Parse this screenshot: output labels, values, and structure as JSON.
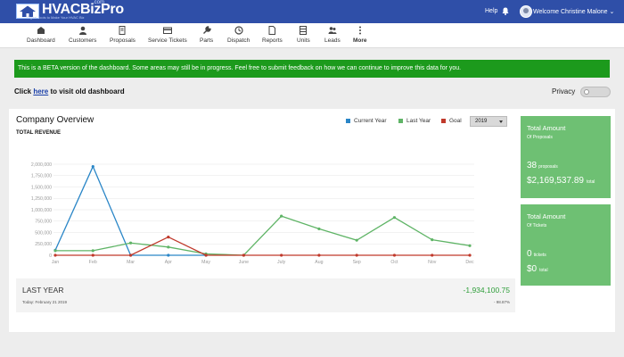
{
  "app": {
    "logo_text": "HVACBizPro",
    "logo_tld": ".com",
    "logo_tagline": "Digital Tools to Make Your HVAC Biz"
  },
  "header": {
    "help_label": "Help",
    "welcome_text": "Welcome Christine Malone"
  },
  "nav": {
    "items": [
      {
        "label": "Dashboard",
        "icon": "dashboard-icon"
      },
      {
        "label": "Customers",
        "icon": "user-icon"
      },
      {
        "label": "Proposals",
        "icon": "proposal-icon"
      },
      {
        "label": "Service Tickets",
        "icon": "credit-card-icon"
      },
      {
        "label": "Parts",
        "icon": "wrench-icon"
      },
      {
        "label": "Dispatch",
        "icon": "dispatch-icon"
      },
      {
        "label": "Reports",
        "icon": "document-icon"
      },
      {
        "label": "Units",
        "icon": "units-icon"
      },
      {
        "label": "Leads",
        "icon": "leads-icon"
      },
      {
        "label": "More",
        "icon": "vertical-dots-icon"
      }
    ]
  },
  "banner": {
    "text": "This is a BETA version of the dashboard. Some areas may still be in progress. Feel free to submit feedback on how we can continue to improve this data for you."
  },
  "old_dashboard": {
    "prefix": "Click ",
    "link": "here",
    "suffix": " to visit old dashboard"
  },
  "privacy": {
    "label": "Privacy",
    "enabled": false
  },
  "overview": {
    "title": "Company Overview",
    "subtitle": "TOTAL REVENUE",
    "legend": [
      {
        "label": "Current Year",
        "color": "#2a86c7"
      },
      {
        "label": "Last Year",
        "color": "#5fb466"
      },
      {
        "label": "Goal",
        "color": "#c0392b"
      }
    ],
    "year_selected": "2019"
  },
  "chart_data": {
    "type": "line",
    "categories": [
      "Jan",
      "Feb",
      "Mar",
      "Apr",
      "May",
      "June",
      "July",
      "Aug",
      "Sep",
      "Oct",
      "Nov",
      "Dec"
    ],
    "yticks": [
      "0",
      "250,000",
      "500,000",
      "750,000",
      "1,000,000",
      "1,250,000",
      "1,500,000",
      "1,750,000",
      "2,000,000"
    ],
    "ylim": [
      0,
      2000000
    ],
    "grid": true,
    "legend_position": "top-right",
    "series": [
      {
        "name": "Current Year",
        "color": "#2a86c7",
        "values": [
          110000,
          1950000,
          0,
          0,
          0,
          null,
          null,
          null,
          null,
          null,
          null,
          null
        ]
      },
      {
        "name": "Last Year",
        "color": "#5fb466",
        "values": [
          100000,
          100000,
          270000,
          180000,
          30000,
          0,
          860000,
          580000,
          330000,
          830000,
          340000,
          210000
        ]
      },
      {
        "name": "Goal",
        "color": "#c0392b",
        "values": [
          0,
          0,
          0,
          400000,
          0,
          0,
          0,
          0,
          0,
          0,
          0,
          0
        ]
      }
    ]
  },
  "last_year": {
    "label": "LAST YEAR",
    "date": "Today: February 21 2019",
    "value": "-1,934,100.75",
    "percent": "- 98.87%"
  },
  "cards": {
    "proposals": {
      "title": "Total Amount",
      "subtitle": "Of Proposals",
      "count": "38",
      "count_label": "proposals",
      "amount": "$2,169,537.89",
      "amount_label": "total"
    },
    "tickets": {
      "title": "Total Amount",
      "subtitle": "Of Tickets",
      "count": "0",
      "count_label": "tickets",
      "amount": "$0",
      "amount_label": "total"
    }
  }
}
